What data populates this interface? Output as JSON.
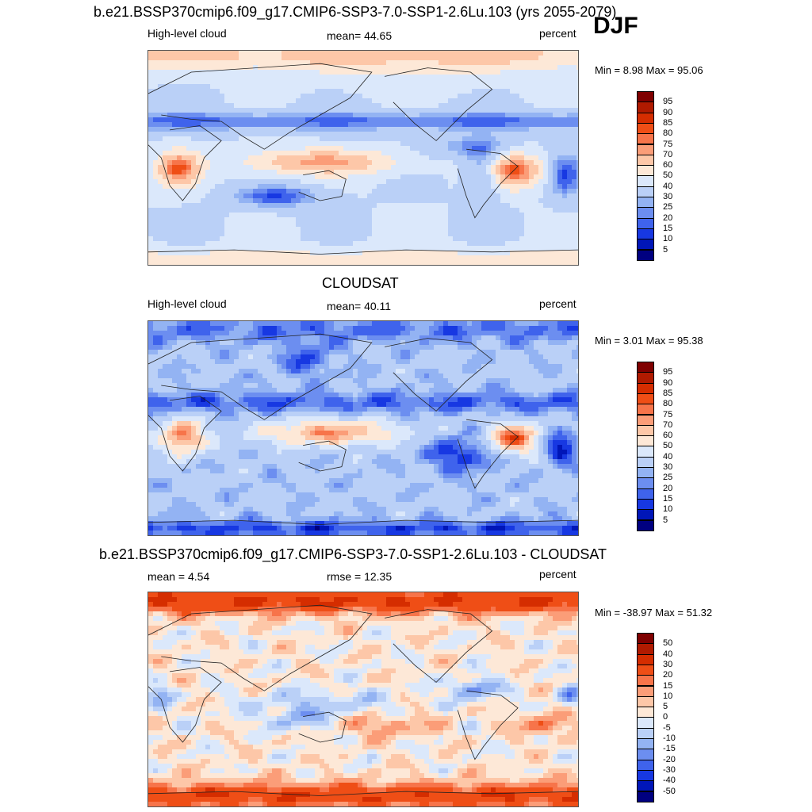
{
  "page_title": "DJF",
  "panels": [
    {
      "id": "model",
      "header": "b.e21.BSSP370cmip6.f09_g17.CMIP6-SSP3-7.0-SSP1-2.6Lu.103 (yrs 2055-2079)",
      "left_label": "High-level cloud",
      "center_label": "mean=  44.65",
      "right_label": "percent",
      "minmax": "Min =   8.98 Max =  95.06",
      "colorbar": {
        "labels": [
          "95",
          "90",
          "85",
          "80",
          "75",
          "70",
          "60",
          "50",
          "40",
          "30",
          "25",
          "20",
          "15",
          "10",
          "5"
        ],
        "colors": [
          "#7f0000",
          "#b01a00",
          "#d52d00",
          "#ef4e16",
          "#f7744a",
          "#fb9d78",
          "#fdc7a8",
          "#fde8d7",
          "#dbe8fb",
          "#bad0f7",
          "#93b3f3",
          "#6c8ef0",
          "#3f63ec",
          "#1738e2",
          "#0016b8",
          "#000080"
        ]
      },
      "field": "model"
    },
    {
      "id": "obs",
      "header": "CLOUDSAT",
      "left_label": "High-level cloud",
      "center_label": "mean=  40.11",
      "right_label": "percent",
      "minmax": "Min =   3.01 Max =  95.38",
      "colorbar": {
        "labels": [
          "95",
          "90",
          "85",
          "80",
          "75",
          "70",
          "60",
          "50",
          "40",
          "30",
          "25",
          "20",
          "15",
          "10",
          "5"
        ],
        "colors": [
          "#7f0000",
          "#b01a00",
          "#d52d00",
          "#ef4e16",
          "#f7744a",
          "#fb9d78",
          "#fdc7a8",
          "#fde8d7",
          "#dbe8fb",
          "#bad0f7",
          "#93b3f3",
          "#6c8ef0",
          "#3f63ec",
          "#1738e2",
          "#0016b8",
          "#000080"
        ]
      },
      "field": "obs"
    },
    {
      "id": "diff",
      "header": "b.e21.BSSP370cmip6.f09_g17.CMIP6-SSP3-7.0-SSP1-2.6Lu.103 - CLOUDSAT",
      "left_label": "mean =   4.54",
      "center_label": "rmse =  12.35",
      "right_label": "percent",
      "minmax": "Min = -38.97 Max =  51.32",
      "colorbar": {
        "labels": [
          "50",
          "40",
          "30",
          "20",
          "15",
          "10",
          "5",
          "0",
          "-5",
          "-10",
          "-15",
          "-20",
          "-30",
          "-40",
          "-50"
        ],
        "colors": [
          "#7f0000",
          "#b01a00",
          "#d52d00",
          "#ef4e16",
          "#f7744a",
          "#fb9d78",
          "#fdc7a8",
          "#fde8d7",
          "#dbe8fb",
          "#bad0f7",
          "#93b3f3",
          "#6c8ef0",
          "#3f63ec",
          "#1738e2",
          "#0016b8",
          "#000080"
        ]
      },
      "field": "diff"
    }
  ]
}
